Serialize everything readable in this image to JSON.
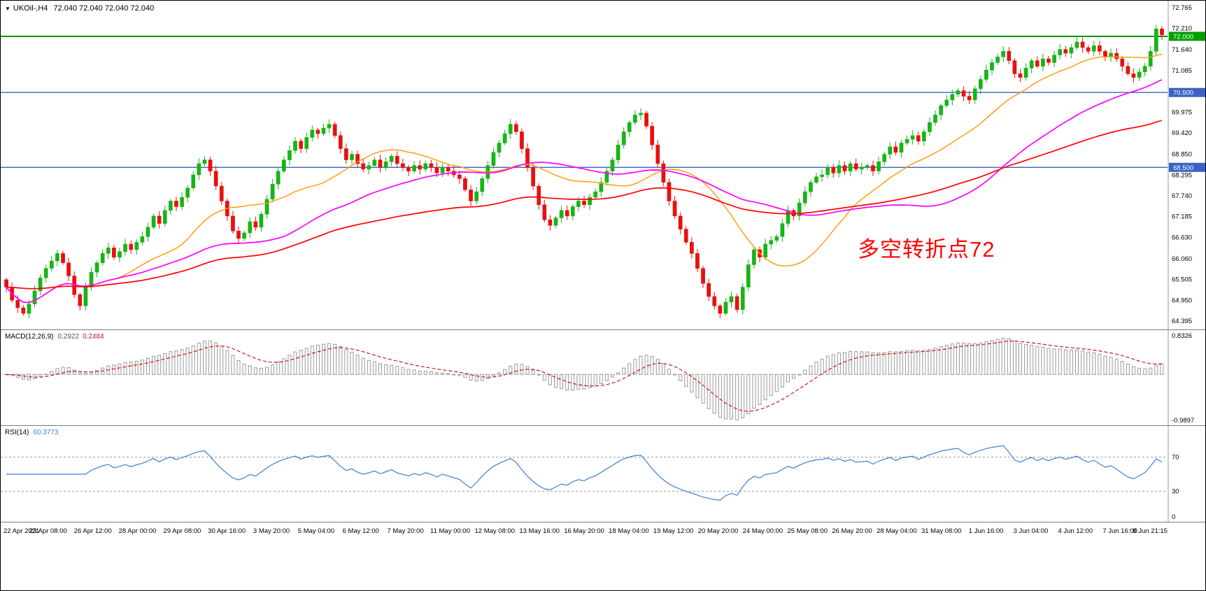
{
  "window": {
    "collapse_icon": "▼",
    "symbol_title": "UKOil-,H4",
    "quotes": "72.040 72.040 72.040 72.040"
  },
  "annotation": {
    "text": "多空转折点72",
    "color": "#FF0000"
  },
  "levels": [
    {
      "value": 72.0,
      "chip_label": "72.000",
      "color": "#009900",
      "chip_bg": "#00A000",
      "width": 2
    },
    {
      "value": 70.5,
      "chip_label": "70.500",
      "color": "#3B63C4",
      "chip_bg": "#3B63C4",
      "width": 1.4
    },
    {
      "value": 68.5,
      "chip_label": "68.500",
      "color": "#3B63C4",
      "chip_bg": "#3B63C4",
      "width": 1.4
    }
  ],
  "price_axis": {
    "ticks": [
      "72.765",
      "72.210",
      "71.640",
      "71.085",
      "69.975",
      "69.420",
      "68.850",
      "68.295",
      "67.740",
      "67.185",
      "66.630",
      "66.060",
      "65.505",
      "64.950",
      "64.395"
    ]
  },
  "indicators": {
    "macd": {
      "name": "MACD(12,26,9)",
      "value_main": "0.2922",
      "value_signal": "0.2484",
      "axis_max": "0.8326",
      "axis_min": "-0.9897",
      "fast": 12,
      "slow": 26,
      "signal": 9,
      "histogram_color": "#9a9a9a",
      "signal_color": "#D00000"
    },
    "rsi": {
      "name": "RSI(14)",
      "value": "60.3773",
      "period": 14,
      "levels": [
        70,
        30
      ],
      "floor_label": "0",
      "line_color": "#3E7FD6"
    }
  },
  "time_axis": {
    "labels": [
      "22 Apr 2021",
      "23 Apr 08:00",
      "26 Apr 12:00",
      "28 Apr 00:00",
      "29 Apr 08:00",
      "30 Apr 16:00",
      "3 May 20:00",
      "5 May 04:00",
      "6 May 12:00",
      "7 May 20:00",
      "11 May 00:00",
      "12 May 08:00",
      "13 May 16:00",
      "16 May 20:00",
      "18 May 04:00",
      "19 May 12:00",
      "20 May 20:00",
      "24 May 00:00",
      "25 May 08:00",
      "26 May 20:00",
      "28 May 04:00",
      "31 May 08:00",
      "1 Jun 16:00",
      "3 Jun 04:00",
      "4 Jun 12:00",
      "7 Jun 16:00",
      "8 Jun 21:15"
    ]
  },
  "chart_data": {
    "type": "candlestick",
    "symbol": "UKOil-",
    "timeframe": "H4",
    "title": "UKOil-,H4",
    "ylim": [
      64.395,
      72.765
    ],
    "up_color": "#17B417",
    "down_color": "#E81010",
    "note": "closes estimated from pixels; opens = prior close; wicks synthesized",
    "closes": [
      65.3,
      64.95,
      64.75,
      64.6,
      64.85,
      65.2,
      65.55,
      65.8,
      66.0,
      66.2,
      65.95,
      65.6,
      65.1,
      64.8,
      65.3,
      65.7,
      65.95,
      66.2,
      66.35,
      66.1,
      66.25,
      66.45,
      66.3,
      66.5,
      66.65,
      66.9,
      67.2,
      67.0,
      67.35,
      67.6,
      67.45,
      67.7,
      67.95,
      68.3,
      68.6,
      68.7,
      68.4,
      68.0,
      67.6,
      67.2,
      66.8,
      66.6,
      66.75,
      67.05,
      66.9,
      67.25,
      67.65,
      68.05,
      68.4,
      68.7,
      68.95,
      69.2,
      69.0,
      69.3,
      69.5,
      69.4,
      69.55,
      69.65,
      69.35,
      69.0,
      68.7,
      68.85,
      68.6,
      68.45,
      68.55,
      68.7,
      68.5,
      68.65,
      68.8,
      68.6,
      68.5,
      68.4,
      68.55,
      68.45,
      68.6,
      68.5,
      68.35,
      68.5,
      68.4,
      68.3,
      68.2,
      67.9,
      67.6,
      67.85,
      68.2,
      68.55,
      68.9,
      69.15,
      69.4,
      69.65,
      69.45,
      69.0,
      68.5,
      68.0,
      67.5,
      67.1,
      66.95,
      67.15,
      67.35,
      67.2,
      67.45,
      67.6,
      67.5,
      67.7,
      67.85,
      68.1,
      68.4,
      68.7,
      69.1,
      69.45,
      69.7,
      69.9,
      69.95,
      69.6,
      69.1,
      68.6,
      68.1,
      67.6,
      67.2,
      66.85,
      66.5,
      66.2,
      65.8,
      65.4,
      65.05,
      64.8,
      64.6,
      64.9,
      65.05,
      64.7,
      65.3,
      65.9,
      66.3,
      66.1,
      66.45,
      66.55,
      66.65,
      67.0,
      67.35,
      67.2,
      67.55,
      67.85,
      68.1,
      68.25,
      68.3,
      68.5,
      68.35,
      68.55,
      68.4,
      68.6,
      68.45,
      68.5,
      68.55,
      68.4,
      68.65,
      68.85,
      69.05,
      68.9,
      69.15,
      69.25,
      69.35,
      69.2,
      69.45,
      69.7,
      69.9,
      70.15,
      70.3,
      70.45,
      70.55,
      70.4,
      70.3,
      70.6,
      70.85,
      71.1,
      71.3,
      71.45,
      71.6,
      71.35,
      71.0,
      70.9,
      71.15,
      71.35,
      71.2,
      71.4,
      71.3,
      71.5,
      71.65,
      71.55,
      71.7,
      71.85,
      71.7,
      71.6,
      71.75,
      71.6,
      71.45,
      71.55,
      71.4,
      71.2,
      71.0,
      70.9,
      71.05,
      71.2,
      71.6,
      72.2,
      72.04
    ],
    "overlays": [
      {
        "type": "sma",
        "period": 20,
        "color": "#FF9900",
        "width": 1.4
      },
      {
        "type": "sma",
        "period": 50,
        "color": "#FF00FF",
        "width": 1.7
      },
      {
        "type": "ema",
        "period": 100,
        "color": "#FF0000",
        "width": 1.7
      }
    ],
    "hlines": [
      72.0,
      70.5,
      68.5
    ]
  }
}
